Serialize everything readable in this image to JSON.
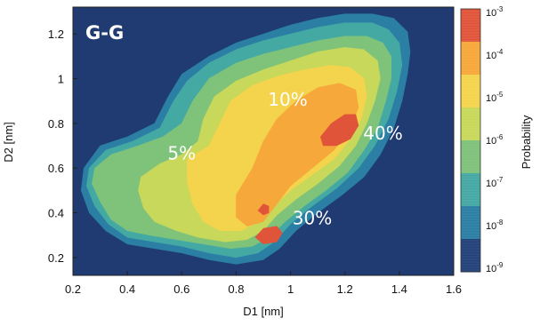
{
  "chart_data": {
    "type": "heatmap",
    "panel_tag": "G-G",
    "xlabel": "D1 [nm]",
    "ylabel": "D2 [nm]",
    "xlim": [
      0.2,
      1.6
    ],
    "ylim": [
      0.12,
      1.32
    ],
    "x_ticks": [
      "0.2",
      "0.4",
      "0.6",
      "0.8",
      "1",
      "1.2",
      "1.4",
      "1.6"
    ],
    "y_ticks": [
      "0.2",
      "0.4",
      "0.6",
      "0.8",
      "1",
      "1.2"
    ],
    "x_tick_values": [
      0.2,
      0.4,
      0.6,
      0.8,
      1.0,
      1.2,
      1.4,
      1.6
    ],
    "y_tick_values": [
      0.2,
      0.4,
      0.6,
      0.8,
      1.0,
      1.2
    ],
    "colorbar": {
      "label": "Probability",
      "scale": "log",
      "ticks": [
        {
          "base": "10",
          "exp": "-3",
          "value": 0.001
        },
        {
          "base": "10",
          "exp": "-4",
          "value": 0.0001
        },
        {
          "base": "10",
          "exp": "-5",
          "value": 1e-05
        },
        {
          "base": "10",
          "exp": "-6",
          "value": 1e-06
        },
        {
          "base": "10",
          "exp": "-7",
          "value": 1e-07
        },
        {
          "base": "10",
          "exp": "-8",
          "value": 1e-08
        },
        {
          "base": "10",
          "exp": "-9",
          "value": 1e-09
        }
      ],
      "colors_top_to_bottom": [
        "#e0553a",
        "#f6a93a",
        "#f3d44c",
        "#c7d85a",
        "#7fc27a",
        "#45a9a3",
        "#2b7fa4",
        "#23427a"
      ]
    },
    "background_color": "#1f3b72",
    "regions": [
      {
        "level": "1e-9 to 1e-8",
        "color": "#2b7fa4",
        "polygon": [
          [
            0.24,
            0.6
          ],
          [
            0.3,
            0.7
          ],
          [
            0.4,
            0.74
          ],
          [
            0.5,
            0.8
          ],
          [
            0.55,
            0.92
          ],
          [
            0.6,
            1.02
          ],
          [
            0.7,
            1.1
          ],
          [
            0.8,
            1.16
          ],
          [
            0.9,
            1.2
          ],
          [
            1.0,
            1.24
          ],
          [
            1.1,
            1.27
          ],
          [
            1.2,
            1.29
          ],
          [
            1.3,
            1.29
          ],
          [
            1.38,
            1.27
          ],
          [
            1.43,
            1.21
          ],
          [
            1.44,
            1.12
          ],
          [
            1.43,
            1.02
          ],
          [
            1.41,
            0.9
          ],
          [
            1.38,
            0.78
          ],
          [
            1.33,
            0.66
          ],
          [
            1.27,
            0.56
          ],
          [
            1.19,
            0.48
          ],
          [
            1.1,
            0.4
          ],
          [
            1.02,
            0.32
          ],
          [
            0.96,
            0.24
          ],
          [
            0.9,
            0.19
          ],
          [
            0.8,
            0.17
          ],
          [
            0.7,
            0.19
          ],
          [
            0.6,
            0.22
          ],
          [
            0.5,
            0.24
          ],
          [
            0.4,
            0.26
          ],
          [
            0.32,
            0.32
          ],
          [
            0.26,
            0.4
          ],
          [
            0.23,
            0.5
          ]
        ]
      },
      {
        "level": "1e-8 to 1e-7",
        "color": "#45a9a3",
        "polygon": [
          [
            0.26,
            0.6
          ],
          [
            0.32,
            0.68
          ],
          [
            0.42,
            0.72
          ],
          [
            0.52,
            0.78
          ],
          [
            0.57,
            0.9
          ],
          [
            0.62,
            0.99
          ],
          [
            0.7,
            1.07
          ],
          [
            0.8,
            1.13
          ],
          [
            0.9,
            1.17
          ],
          [
            1.0,
            1.2
          ],
          [
            1.1,
            1.23
          ],
          [
            1.2,
            1.25
          ],
          [
            1.3,
            1.25
          ],
          [
            1.36,
            1.22
          ],
          [
            1.4,
            1.16
          ],
          [
            1.41,
            1.06
          ],
          [
            1.39,
            0.94
          ],
          [
            1.36,
            0.82
          ],
          [
            1.31,
            0.7
          ],
          [
            1.25,
            0.6
          ],
          [
            1.17,
            0.51
          ],
          [
            1.08,
            0.43
          ],
          [
            1.0,
            0.35
          ],
          [
            0.94,
            0.27
          ],
          [
            0.88,
            0.22
          ],
          [
            0.8,
            0.2
          ],
          [
            0.7,
            0.22
          ],
          [
            0.6,
            0.25
          ],
          [
            0.5,
            0.27
          ],
          [
            0.4,
            0.29
          ],
          [
            0.33,
            0.35
          ],
          [
            0.28,
            0.43
          ],
          [
            0.25,
            0.52
          ]
        ]
      },
      {
        "level": "1e-7 to 1e-6",
        "color": "#7fc27a",
        "polygon": [
          [
            0.28,
            0.6
          ],
          [
            0.34,
            0.66
          ],
          [
            0.44,
            0.7
          ],
          [
            0.53,
            0.74
          ],
          [
            0.6,
            0.8
          ],
          [
            0.64,
            0.9
          ],
          [
            0.7,
            1.0
          ],
          [
            0.8,
            1.07
          ],
          [
            0.9,
            1.11
          ],
          [
            1.0,
            1.14
          ],
          [
            1.1,
            1.17
          ],
          [
            1.2,
            1.19
          ],
          [
            1.28,
            1.19
          ],
          [
            1.34,
            1.16
          ],
          [
            1.37,
            1.1
          ],
          [
            1.37,
            1.0
          ],
          [
            1.35,
            0.9
          ],
          [
            1.32,
            0.78
          ],
          [
            1.27,
            0.68
          ],
          [
            1.21,
            0.58
          ],
          [
            1.13,
            0.5
          ],
          [
            1.05,
            0.43
          ],
          [
            0.98,
            0.36
          ],
          [
            0.92,
            0.29
          ],
          [
            0.86,
            0.25
          ],
          [
            0.78,
            0.24
          ],
          [
            0.68,
            0.26
          ],
          [
            0.58,
            0.28
          ],
          [
            0.48,
            0.3
          ],
          [
            0.4,
            0.32
          ],
          [
            0.34,
            0.37
          ],
          [
            0.3,
            0.45
          ],
          [
            0.27,
            0.53
          ]
        ]
      },
      {
        "level": "1e-6 to 1e-5",
        "color": "#c7d85a",
        "polygon": [
          [
            0.45,
            0.56
          ],
          [
            0.52,
            0.62
          ],
          [
            0.6,
            0.66
          ],
          [
            0.66,
            0.72
          ],
          [
            0.68,
            0.82
          ],
          [
            0.72,
            0.92
          ],
          [
            0.8,
            0.99
          ],
          [
            0.9,
            1.04
          ],
          [
            1.0,
            1.08
          ],
          [
            1.1,
            1.12
          ],
          [
            1.2,
            1.14
          ],
          [
            1.27,
            1.13
          ],
          [
            1.32,
            1.08
          ],
          [
            1.33,
            1.0
          ],
          [
            1.31,
            0.9
          ],
          [
            1.28,
            0.8
          ],
          [
            1.24,
            0.7
          ],
          [
            1.18,
            0.61
          ],
          [
            1.1,
            0.53
          ],
          [
            1.02,
            0.46
          ],
          [
            0.95,
            0.39
          ],
          [
            0.9,
            0.32
          ],
          [
            0.84,
            0.28
          ],
          [
            0.76,
            0.27
          ],
          [
            0.66,
            0.29
          ],
          [
            0.58,
            0.32
          ],
          [
            0.5,
            0.36
          ],
          [
            0.46,
            0.42
          ],
          [
            0.44,
            0.5
          ]
        ]
      },
      {
        "level": "1e-5 to 1e-4",
        "color": "#f3d44c",
        "polygon": [
          [
            0.62,
            0.64
          ],
          [
            0.7,
            0.7
          ],
          [
            0.74,
            0.8
          ],
          [
            0.78,
            0.9
          ],
          [
            0.86,
            0.97
          ],
          [
            0.95,
            1.01
          ],
          [
            1.05,
            1.04
          ],
          [
            1.15,
            1.06
          ],
          [
            1.22,
            1.05
          ],
          [
            1.27,
            1.0
          ],
          [
            1.28,
            0.92
          ],
          [
            1.26,
            0.82
          ],
          [
            1.22,
            0.73
          ],
          [
            1.16,
            0.64
          ],
          [
            1.08,
            0.57
          ],
          [
            1.0,
            0.5
          ],
          [
            0.94,
            0.43
          ],
          [
            0.88,
            0.36
          ],
          [
            0.82,
            0.32
          ],
          [
            0.74,
            0.32
          ],
          [
            0.68,
            0.36
          ],
          [
            0.64,
            0.44
          ],
          [
            0.62,
            0.54
          ]
        ]
      },
      {
        "level": "1e-4 to 1e-3",
        "color": "#f6a93a",
        "polygon": [
          [
            0.8,
            0.48
          ],
          [
            0.86,
            0.6
          ],
          [
            0.9,
            0.72
          ],
          [
            0.95,
            0.82
          ],
          [
            1.02,
            0.9
          ],
          [
            1.1,
            0.96
          ],
          [
            1.18,
            0.98
          ],
          [
            1.24,
            0.95
          ],
          [
            1.25,
            0.87
          ],
          [
            1.22,
            0.78
          ],
          [
            1.16,
            0.68
          ],
          [
            1.08,
            0.6
          ],
          [
            1.0,
            0.52
          ],
          [
            0.95,
            0.44
          ],
          [
            0.9,
            0.36
          ],
          [
            0.84,
            0.34
          ],
          [
            0.8,
            0.38
          ]
        ]
      },
      {
        "level": "above 1e-3",
        "color": "#e0553a",
        "polygon": [
          [
            1.11,
            0.74
          ],
          [
            1.15,
            0.8
          ],
          [
            1.2,
            0.84
          ],
          [
            1.24,
            0.84
          ],
          [
            1.25,
            0.79
          ],
          [
            1.22,
            0.73
          ],
          [
            1.17,
            0.7
          ],
          [
            1.12,
            0.7
          ]
        ]
      },
      {
        "level": "above 1e-3",
        "color": "#e0553a",
        "polygon": [
          [
            0.87,
            0.29
          ],
          [
            0.9,
            0.33
          ],
          [
            0.95,
            0.34
          ],
          [
            0.97,
            0.31
          ],
          [
            0.95,
            0.27
          ],
          [
            0.9,
            0.26
          ]
        ]
      },
      {
        "level": "above 1e-3",
        "color": "#e0553a",
        "polygon": [
          [
            0.88,
            0.41
          ],
          [
            0.9,
            0.44
          ],
          [
            0.92,
            0.43
          ],
          [
            0.92,
            0.4
          ],
          [
            0.9,
            0.39
          ]
        ]
      }
    ],
    "annotations": [
      {
        "text": "10%",
        "x": 0.99,
        "y": 0.9
      },
      {
        "text": "5%",
        "x": 0.6,
        "y": 0.66
      },
      {
        "text": "40%",
        "x": 1.34,
        "y": 0.75
      },
      {
        "text": "30%",
        "x": 1.08,
        "y": 0.37
      }
    ]
  }
}
